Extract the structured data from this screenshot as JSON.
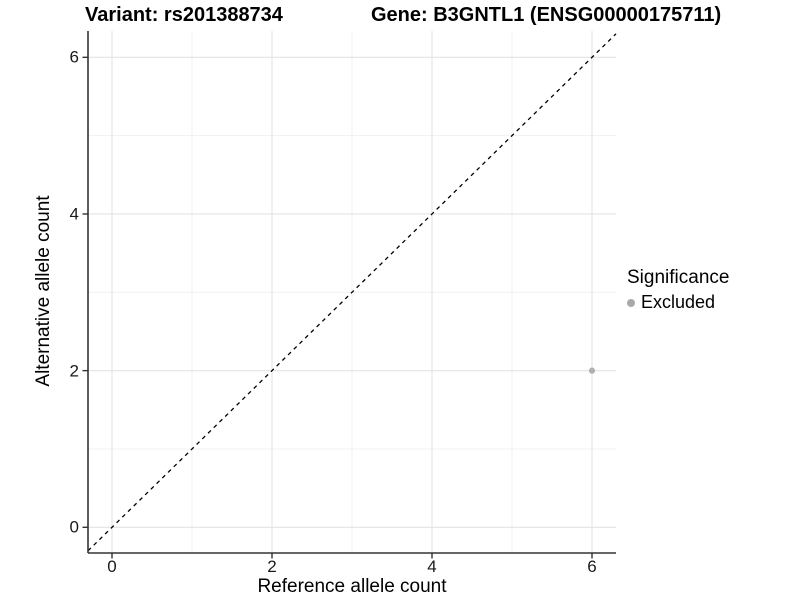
{
  "chart_data": {
    "type": "scatter",
    "titles": {
      "left": "Variant: rs201388734",
      "right": "Gene: B3GNTL1 (ENSG00000175711)"
    },
    "xlabel": "Reference allele count",
    "ylabel": "Alternative allele count",
    "xlim": [
      -0.3,
      6.3
    ],
    "ylim": [
      -0.3,
      6.3
    ],
    "x_ticks": [
      0,
      2,
      4,
      6
    ],
    "y_ticks": [
      0,
      2,
      4,
      6
    ],
    "x_minor_ticks": [
      1,
      3,
      5
    ],
    "y_minor_ticks": [
      1,
      3,
      5
    ],
    "grid": "major+minor",
    "reference_line": {
      "equation": "y = x",
      "style": "dashed",
      "color": "#000000"
    },
    "series": [
      {
        "name": "Excluded",
        "color": "#b0b0b0",
        "points": [
          {
            "x": 6,
            "y": 2
          }
        ]
      }
    ],
    "legend": {
      "title": "Significance",
      "position": "right",
      "entries": [
        {
          "label": "Excluded",
          "color": "#a9a9a9",
          "marker": "circle"
        }
      ]
    }
  },
  "colors": {
    "background": "#ffffff",
    "axis_line": "#333333",
    "grid_major": "#e3e3e3",
    "grid_minor": "#f1f1f1",
    "point": "#b0b0b0",
    "reference_line": "#000000"
  }
}
